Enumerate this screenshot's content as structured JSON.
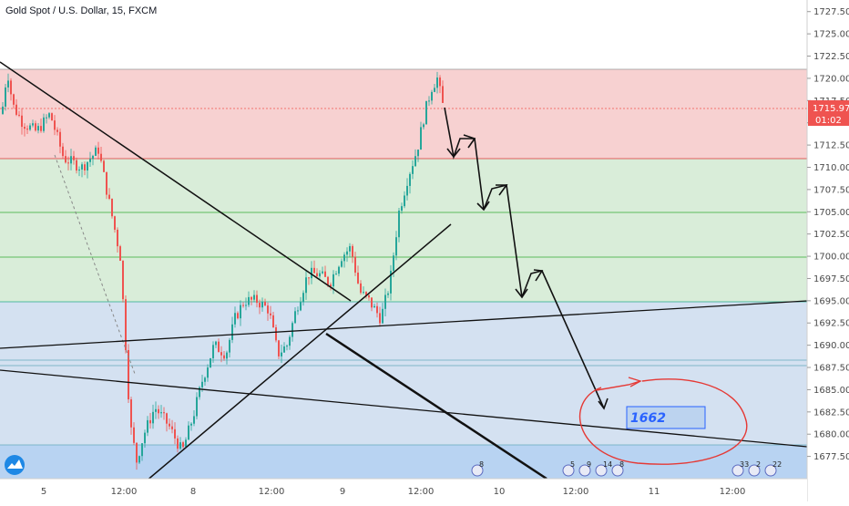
{
  "header": {
    "title": "Gold Spot / U.S. Dollar, 15, FXCM"
  },
  "price_tag": {
    "value": "1715.97",
    "countdown": "01:02",
    "color": "#ef5350"
  },
  "annotation": {
    "text": "1662",
    "text_color": "#2962ff"
  },
  "logo": {
    "name": "tradingview-logo-icon"
  },
  "colors": {
    "red_zone": "#f5c6c6",
    "green_zone": "#cfe8cf",
    "blue_zone": "#c9d9ee",
    "candle_up": "#26a69a",
    "candle_down": "#ef5350"
  },
  "chart_data": {
    "type": "candlestick",
    "title": "Gold Spot / U.S. Dollar, 15, FXCM",
    "ylim": [
      1675.0,
      1728.6
    ],
    "y_ticks": [
      "1727.50",
      "1725.00",
      "1722.50",
      "1720.00",
      "1717.50",
      "1715.00",
      "1712.50",
      "1710.00",
      "1707.50",
      "1705.00",
      "1702.50",
      "1700.00",
      "1697.50",
      "1695.00",
      "1692.50",
      "1690.00",
      "1687.50",
      "1685.00",
      "1682.50",
      "1680.00",
      "1677.50"
    ],
    "x_labels": [
      "5",
      "12:00",
      "8",
      "12:00",
      "9",
      "12:00",
      "10",
      "12:00",
      "11",
      "12:00"
    ],
    "current_price": 1715.97,
    "zones": [
      {
        "color": "red",
        "from": 1710.6,
        "to": 1720.2
      },
      {
        "color": "green",
        "from": 1694.9,
        "to": 1710.6
      },
      {
        "color": "blue",
        "from": 1675.0,
        "to": 1694.9
      }
    ],
    "target": 1662
  },
  "event_badges": [
    "8",
    "5",
    "9",
    "14",
    "8",
    "33",
    "2",
    "22"
  ]
}
